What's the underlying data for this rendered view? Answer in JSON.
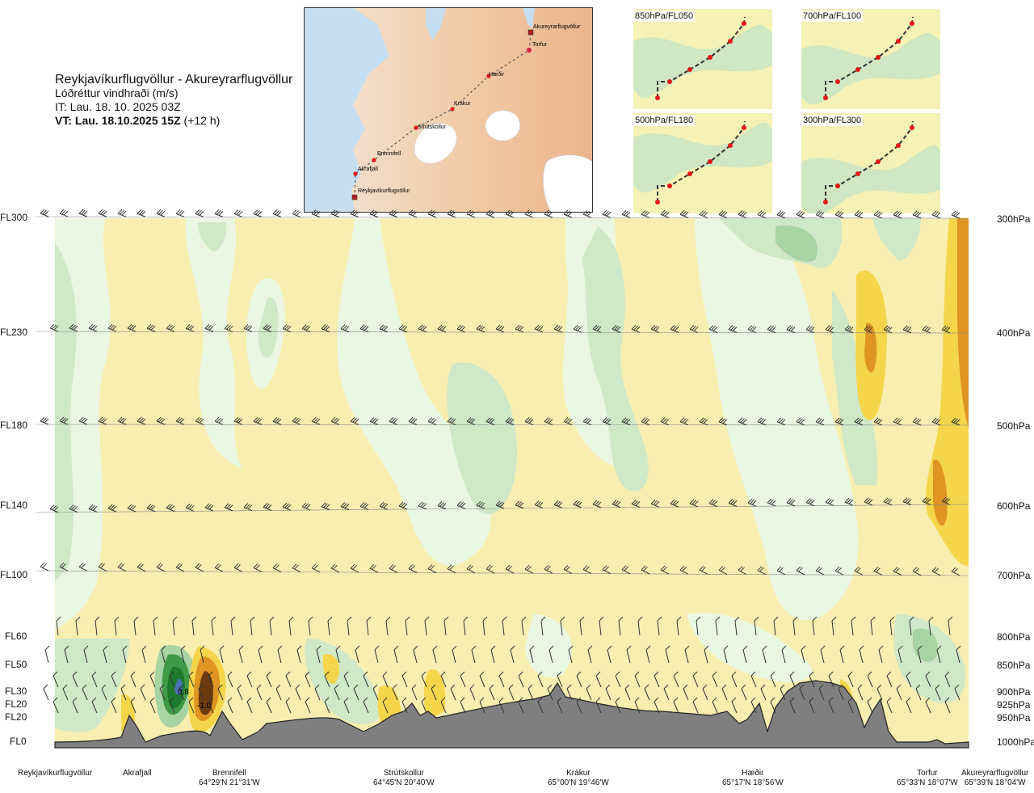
{
  "header": {
    "route": "Reykjavíkurflugvöllur - Akureyrarflugvöllur",
    "variable": "Lóðréttur vindhraði (m/s)",
    "it": "IT: Lau. 18. 10. 2025 03Z",
    "vt_bold": "VT: Lau. 18.10.2025 15Z",
    "vt_rest": "(+12 h)"
  },
  "route_map": {
    "points": [
      {
        "name": "Akureyrarflugvöllur"
      },
      {
        "name": "Torfur"
      },
      {
        "name": "Hæðir"
      },
      {
        "name": "Krákur"
      },
      {
        "name": "Strútskollur"
      },
      {
        "name": "Brennifell"
      },
      {
        "name": "Akrafjall"
      },
      {
        "name": "Reykjavíkurflugvöllur"
      }
    ]
  },
  "minimaps": [
    {
      "label": "850hPa/FL050"
    },
    {
      "label": "700hPa/FL100"
    },
    {
      "label": "500hPa/FL180"
    },
    {
      "label": "300hPa/FL300"
    }
  ],
  "chart_data": {
    "type": "heatmap",
    "title": "Lóðréttur vindhraði (m/s)",
    "levels": [
      {
        "fl": "FL300",
        "hpa": "300hPa"
      },
      {
        "fl": "FL230",
        "hpa": "400hPa"
      },
      {
        "fl": "FL180",
        "hpa": "500hPa"
      },
      {
        "fl": "FL140",
        "hpa": "600hPa"
      },
      {
        "fl": "FL100",
        "hpa": "700hPa"
      },
      {
        "fl": "FL60",
        "hpa": "800hPa"
      },
      {
        "fl": "FL50",
        "hpa": "850hPa"
      },
      {
        "fl": "FL30",
        "hpa": "900hPa"
      },
      {
        "fl": "FL20",
        "hpa": "925hPa"
      },
      {
        "fl": "FL20",
        "hpa": "950hPa"
      },
      {
        "fl": "FL0",
        "hpa": "1000hPa"
      }
    ],
    "stations": [
      {
        "name": "Reykjavíkurflugvöllur",
        "coord": ""
      },
      {
        "name": "Akrafjall",
        "coord": ""
      },
      {
        "name": "Brennifell",
        "coord": "64°29'N 21°31'W"
      },
      {
        "name": "Strútskollur",
        "coord": "64°45'N 20°40'W"
      },
      {
        "name": "Krákur",
        "coord": "65°00'N 19°46'W"
      },
      {
        "name": "Hæðir",
        "coord": "65°17'N 18°56'W"
      },
      {
        "name": "Torfur",
        "coord": "65°33'N 18°07'W"
      },
      {
        "name": "Akureyrarflugvöllur",
        "coord": "65°39'N 18°04'W"
      }
    ],
    "annotations": [
      "0.8",
      "-1.0"
    ],
    "colors": {
      "strong_down": "#6b3a0f",
      "down": "#e09422",
      "weak_down": "#f5d64a",
      "slight_down": "#f7eeb0",
      "neutral": "#fffde8",
      "slight_up": "#e9f7e2",
      "weak_up": "#cfe8c8",
      "up": "#a8d3a2",
      "strong_up": "#3f9a47",
      "very_strong_up": "#1e7a2c",
      "core_up": "#4a72b0",
      "terrain": "#7f7f7f"
    }
  }
}
